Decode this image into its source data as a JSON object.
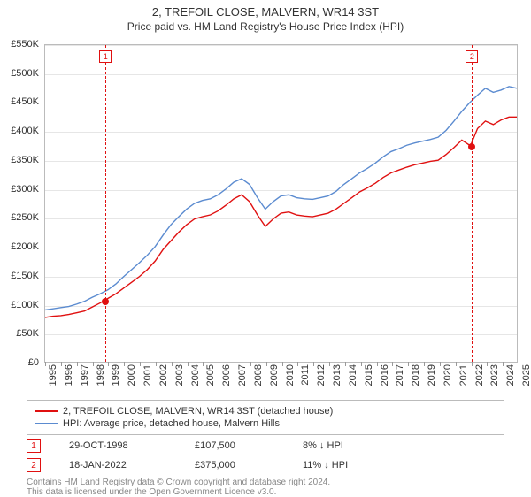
{
  "title": "2, TREFOIL CLOSE, MALVERN, WR14 3ST",
  "subtitle": "Price paid vs. HM Land Registry's House Price Index (HPI)",
  "chart": {
    "type": "line",
    "background_color": "#ffffff",
    "grid_color": "#e6e6e6",
    "border_color": "#bbbbbb",
    "xlim": [
      1995,
      2025
    ],
    "ylim": [
      0,
      550000
    ],
    "ytick_step": 50000,
    "yticks": [
      "£0",
      "£50K",
      "£100K",
      "£150K",
      "£200K",
      "£250K",
      "£300K",
      "£350K",
      "£400K",
      "£450K",
      "£500K",
      "£550K"
    ],
    "xticks": [
      1995,
      1996,
      1997,
      1998,
      1999,
      2000,
      2001,
      2002,
      2003,
      2004,
      2005,
      2006,
      2007,
      2008,
      2009,
      2010,
      2011,
      2012,
      2013,
      2014,
      2015,
      2016,
      2017,
      2018,
      2019,
      2020,
      2021,
      2022,
      2023,
      2024,
      2025
    ],
    "label_fontsize": 11,
    "series": [
      {
        "name": "red",
        "label": "2, TREFOIL CLOSE, MALVERN, WR14 3ST (detached house)",
        "color": "#e01010",
        "line_width": 1.4,
        "values": [
          [
            1995,
            77000
          ],
          [
            1995.5,
            79000
          ],
          [
            1996,
            80000
          ],
          [
            1996.5,
            82000
          ],
          [
            1997,
            85000
          ],
          [
            1997.5,
            88000
          ],
          [
            1998,
            95000
          ],
          [
            1998.5,
            102000
          ],
          [
            1998.83,
            107500
          ],
          [
            1999,
            110000
          ],
          [
            1999.5,
            118000
          ],
          [
            2000,
            128000
          ],
          [
            2000.5,
            138000
          ],
          [
            2001,
            148000
          ],
          [
            2001.5,
            160000
          ],
          [
            2002,
            175000
          ],
          [
            2002.5,
            195000
          ],
          [
            2003,
            210000
          ],
          [
            2003.5,
            225000
          ],
          [
            2004,
            238000
          ],
          [
            2004.5,
            248000
          ],
          [
            2005,
            252000
          ],
          [
            2005.5,
            255000
          ],
          [
            2006,
            262000
          ],
          [
            2006.5,
            272000
          ],
          [
            2007,
            283000
          ],
          [
            2007.5,
            290000
          ],
          [
            2008,
            278000
          ],
          [
            2008.5,
            255000
          ],
          [
            2009,
            235000
          ],
          [
            2009.5,
            248000
          ],
          [
            2010,
            258000
          ],
          [
            2010.5,
            260000
          ],
          [
            2011,
            255000
          ],
          [
            2011.5,
            253000
          ],
          [
            2012,
            252000
          ],
          [
            2012.5,
            255000
          ],
          [
            2013,
            258000
          ],
          [
            2013.5,
            265000
          ],
          [
            2014,
            275000
          ],
          [
            2014.5,
            285000
          ],
          [
            2015,
            295000
          ],
          [
            2015.5,
            302000
          ],
          [
            2016,
            310000
          ],
          [
            2016.5,
            320000
          ],
          [
            2017,
            328000
          ],
          [
            2017.5,
            333000
          ],
          [
            2018,
            338000
          ],
          [
            2018.5,
            342000
          ],
          [
            2019,
            345000
          ],
          [
            2019.5,
            348000
          ],
          [
            2020,
            350000
          ],
          [
            2020.5,
            360000
          ],
          [
            2021,
            372000
          ],
          [
            2021.5,
            385000
          ],
          [
            2022.05,
            375000
          ],
          [
            2022.5,
            405000
          ],
          [
            2023,
            418000
          ],
          [
            2023.5,
            412000
          ],
          [
            2024,
            420000
          ],
          [
            2024.5,
            425000
          ],
          [
            2025,
            425000
          ]
        ]
      },
      {
        "name": "blue",
        "label": "HPI: Average price, detached house, Malvern Hills",
        "color": "#5b8bd0",
        "line_width": 1.4,
        "values": [
          [
            1995,
            90000
          ],
          [
            1995.5,
            92000
          ],
          [
            1996,
            94000
          ],
          [
            1996.5,
            96000
          ],
          [
            1997,
            100000
          ],
          [
            1997.5,
            105000
          ],
          [
            1998,
            112000
          ],
          [
            1998.5,
            118000
          ],
          [
            1999,
            125000
          ],
          [
            1999.5,
            135000
          ],
          [
            2000,
            148000
          ],
          [
            2000.5,
            160000
          ],
          [
            2001,
            172000
          ],
          [
            2001.5,
            185000
          ],
          [
            2002,
            200000
          ],
          [
            2002.5,
            220000
          ],
          [
            2003,
            238000
          ],
          [
            2003.5,
            252000
          ],
          [
            2004,
            265000
          ],
          [
            2004.5,
            275000
          ],
          [
            2005,
            280000
          ],
          [
            2005.5,
            283000
          ],
          [
            2006,
            290000
          ],
          [
            2006.5,
            300000
          ],
          [
            2007,
            312000
          ],
          [
            2007.5,
            318000
          ],
          [
            2008,
            308000
          ],
          [
            2008.5,
            285000
          ],
          [
            2009,
            265000
          ],
          [
            2009.5,
            278000
          ],
          [
            2010,
            288000
          ],
          [
            2010.5,
            290000
          ],
          [
            2011,
            285000
          ],
          [
            2011.5,
            283000
          ],
          [
            2012,
            282000
          ],
          [
            2012.5,
            285000
          ],
          [
            2013,
            288000
          ],
          [
            2013.5,
            296000
          ],
          [
            2014,
            308000
          ],
          [
            2014.5,
            318000
          ],
          [
            2015,
            328000
          ],
          [
            2015.5,
            336000
          ],
          [
            2016,
            345000
          ],
          [
            2016.5,
            356000
          ],
          [
            2017,
            365000
          ],
          [
            2017.5,
            370000
          ],
          [
            2018,
            376000
          ],
          [
            2018.5,
            380000
          ],
          [
            2019,
            383000
          ],
          [
            2019.5,
            386000
          ],
          [
            2020,
            390000
          ],
          [
            2020.5,
            402000
          ],
          [
            2021,
            418000
          ],
          [
            2021.5,
            435000
          ],
          [
            2022,
            450000
          ],
          [
            2022.5,
            463000
          ],
          [
            2023,
            475000
          ],
          [
            2023.5,
            468000
          ],
          [
            2024,
            472000
          ],
          [
            2024.5,
            478000
          ],
          [
            2025,
            475000
          ]
        ]
      }
    ],
    "markers": [
      {
        "id": "1",
        "year": 1998.83,
        "price": 107500,
        "color": "#e01010",
        "bg": "#ffffff"
      },
      {
        "id": "2",
        "year": 2022.05,
        "price": 375000,
        "color": "#e01010",
        "bg": "#ffffff"
      }
    ]
  },
  "legend": {
    "border_color": "#bbbbbb",
    "items": [
      {
        "color": "#e01010",
        "label": "2, TREFOIL CLOSE, MALVERN, WR14 3ST (detached house)"
      },
      {
        "color": "#5b8bd0",
        "label": "HPI: Average price, detached house, Malvern Hills"
      }
    ]
  },
  "marker_rows": [
    {
      "id": "1",
      "date": "29-OCT-1998",
      "price": "£107,500",
      "delta": "8% ↓ HPI",
      "color": "#e01010"
    },
    {
      "id": "2",
      "date": "18-JAN-2022",
      "price": "£375,000",
      "delta": "11% ↓ HPI",
      "color": "#e01010"
    }
  ],
  "footer": {
    "line1": "Contains HM Land Registry data © Crown copyright and database right 2024.",
    "line2": "This data is licensed under the Open Government Licence v3.0."
  }
}
